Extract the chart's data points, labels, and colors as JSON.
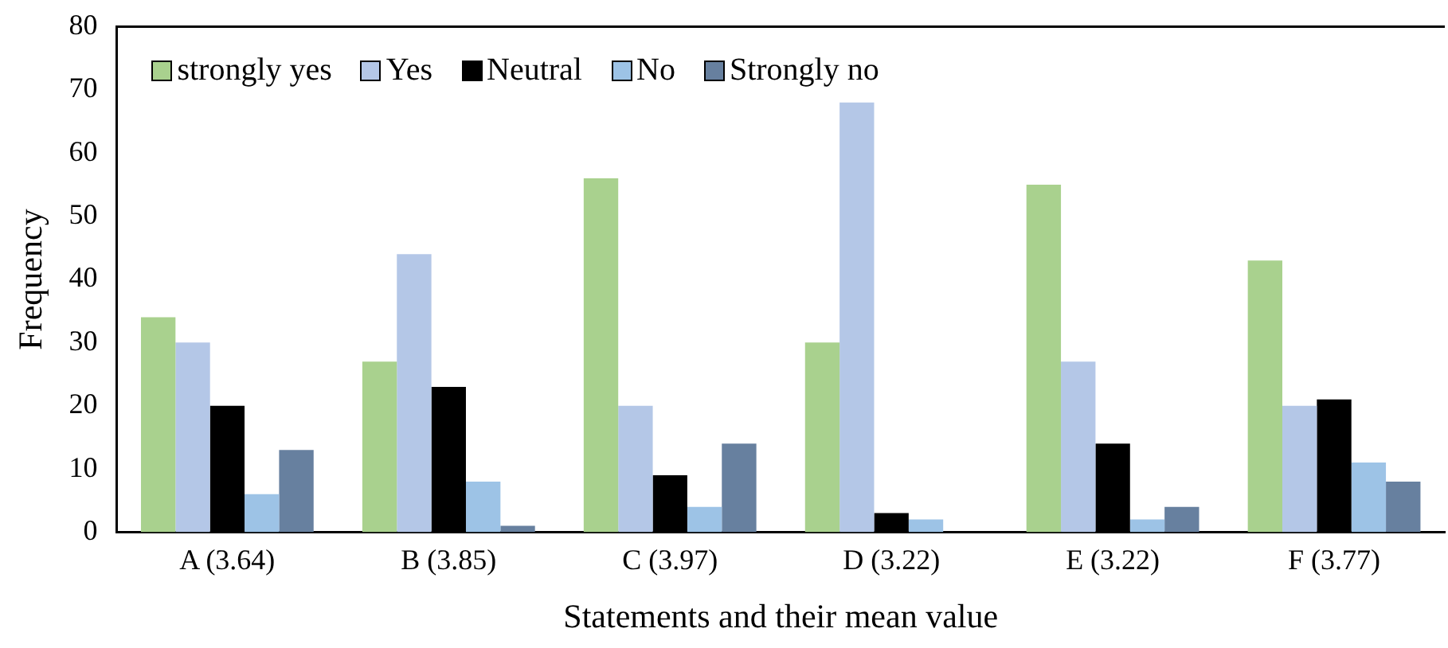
{
  "chart_data": {
    "type": "bar",
    "xlabel": "Statements and their mean value",
    "ylabel": "Frequency",
    "categories": [
      "A (3.64)",
      "B (3.85)",
      "C (3.97)",
      "D (3.22)",
      "E (3.22)",
      "F (3.77)"
    ],
    "series": [
      {
        "name": "strongly yes",
        "color": "#a9d18e",
        "values": [
          34,
          27,
          56,
          30,
          55,
          43
        ]
      },
      {
        "name": "Yes",
        "color": "#b4c7e7",
        "values": [
          30,
          44,
          20,
          68,
          27,
          20
        ]
      },
      {
        "name": "Neutral",
        "color": "#000000",
        "values": [
          20,
          23,
          9,
          3,
          14,
          21
        ]
      },
      {
        "name": "No",
        "color": "#9dc3e6",
        "values": [
          6,
          8,
          4,
          2,
          2,
          11
        ]
      },
      {
        "name": "Strongly no",
        "color": "#67809f",
        "values": [
          13,
          1,
          14,
          0,
          4,
          8
        ]
      }
    ],
    "ylim": [
      0,
      80
    ],
    "yticks": [
      0,
      10,
      20,
      30,
      40,
      50,
      60,
      70,
      80
    ],
    "grid": false,
    "legend": "top left"
  }
}
